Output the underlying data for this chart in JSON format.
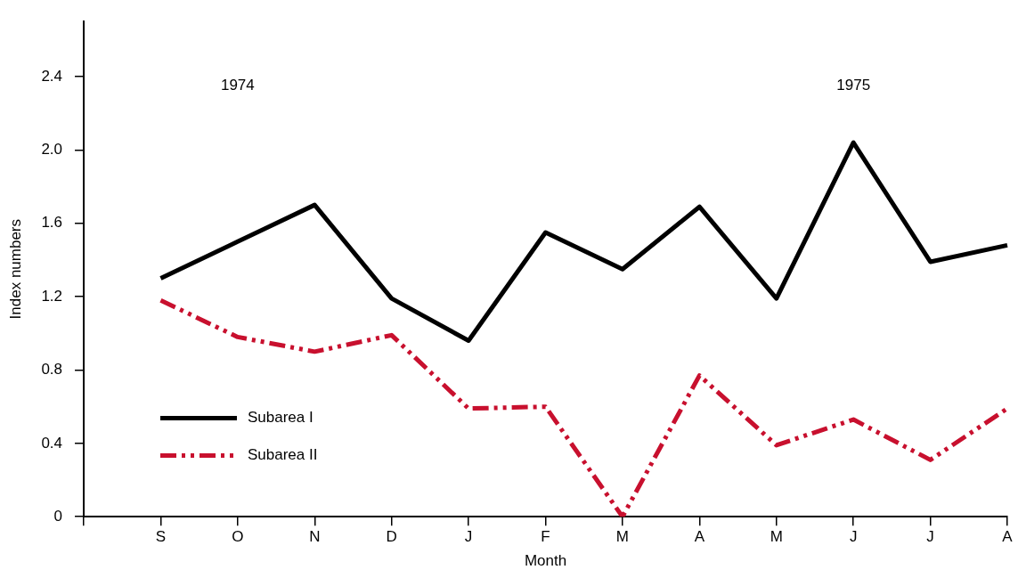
{
  "chart_data": {
    "type": "line",
    "xlabel": "Month",
    "ylabel": "Index numbers",
    "categories": [
      null,
      "S",
      "O",
      "N",
      "D",
      "J",
      "F",
      "M",
      "A",
      "M",
      "J",
      "J",
      "A"
    ],
    "series": [
      {
        "name": "Subarea I",
        "color": "#000000",
        "line_style": "solid",
        "values": [
          null,
          1.3,
          1.5,
          1.7,
          1.19,
          0.96,
          1.55,
          1.35,
          1.69,
          1.19,
          2.04,
          1.39,
          1.48
        ]
      },
      {
        "name": "Subarea II",
        "color": "#c8102e",
        "line_style": "dashdot",
        "values": [
          null,
          1.18,
          0.98,
          0.9,
          0.99,
          0.59,
          0.6,
          0.0,
          0.77,
          0.39,
          0.53,
          0.31,
          0.59
        ]
      }
    ],
    "ylim": [
      0,
      2.7
    ],
    "yticks": [
      0,
      0.4,
      0.8,
      1.2,
      1.6,
      {
        "value": 2,
        "label": "2.0"
      },
      2.4
    ],
    "annotations": [
      "1974",
      "1975"
    ],
    "legend": "bottom left",
    "grid": false,
    "marker": "none"
  }
}
